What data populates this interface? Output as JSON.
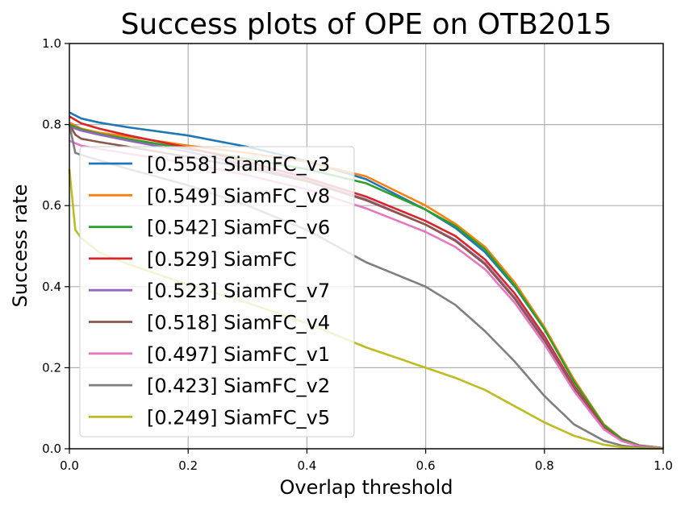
{
  "chart_data": {
    "type": "line",
    "title": "Success plots of OPE on OTB2015",
    "xlabel": "Overlap threshold",
    "ylabel": "Success rate",
    "xlim": [
      0,
      1
    ],
    "ylim": [
      0,
      1
    ],
    "x_ticks": [
      "0.0",
      "0.2",
      "0.4",
      "0.6",
      "0.8",
      "1.0"
    ],
    "y_ticks": [
      "0.0",
      "0.2",
      "0.4",
      "0.6",
      "0.8",
      "1.0"
    ],
    "grid": true,
    "legend_position": "center-left",
    "series": [
      {
        "name": "[0.558] SiamFC_v3",
        "color": "#1f77b4",
        "x": [
          0,
          0.02,
          0.05,
          0.1,
          0.2,
          0.3,
          0.4,
          0.5,
          0.6,
          0.65,
          0.7,
          0.75,
          0.8,
          0.85,
          0.9,
          0.93,
          0.96,
          1.0
        ],
        "y": [
          0.83,
          0.815,
          0.805,
          0.793,
          0.773,
          0.745,
          0.71,
          0.665,
          0.59,
          0.545,
          0.485,
          0.4,
          0.295,
          0.17,
          0.06,
          0.025,
          0.008,
          0.002
        ]
      },
      {
        "name": "[0.549] SiamFC_v8",
        "color": "#ff7f0e",
        "x": [
          0,
          0.02,
          0.05,
          0.1,
          0.2,
          0.3,
          0.4,
          0.5,
          0.6,
          0.65,
          0.7,
          0.75,
          0.8,
          0.85,
          0.9,
          0.93,
          0.96,
          1.0
        ],
        "y": [
          0.805,
          0.79,
          0.78,
          0.77,
          0.748,
          0.73,
          0.708,
          0.672,
          0.6,
          0.555,
          0.498,
          0.41,
          0.3,
          0.17,
          0.06,
          0.025,
          0.008,
          0.002
        ]
      },
      {
        "name": "[0.542] SiamFC_v6",
        "color": "#2ca02c",
        "x": [
          0,
          0.02,
          0.05,
          0.1,
          0.2,
          0.3,
          0.4,
          0.5,
          0.6,
          0.65,
          0.7,
          0.75,
          0.8,
          0.85,
          0.9,
          0.93,
          0.96,
          1.0
        ],
        "y": [
          0.8,
          0.788,
          0.777,
          0.764,
          0.74,
          0.715,
          0.69,
          0.655,
          0.59,
          0.55,
          0.492,
          0.403,
          0.295,
          0.165,
          0.058,
          0.024,
          0.008,
          0.002
        ]
      },
      {
        "name": "[0.529] SiamFC",
        "color": "#d62728",
        "x": [
          0,
          0.02,
          0.05,
          0.1,
          0.2,
          0.3,
          0.4,
          0.5,
          0.6,
          0.65,
          0.7,
          0.75,
          0.8,
          0.85,
          0.9,
          0.93,
          0.96,
          1.0
        ],
        "y": [
          0.82,
          0.803,
          0.79,
          0.773,
          0.743,
          0.708,
          0.668,
          0.622,
          0.562,
          0.525,
          0.467,
          0.383,
          0.278,
          0.155,
          0.052,
          0.02,
          0.007,
          0.002
        ]
      },
      {
        "name": "[0.523] SiamFC_v7",
        "color": "#9467bd",
        "x": [
          0,
          0.02,
          0.05,
          0.1,
          0.2,
          0.3,
          0.4,
          0.5,
          0.6,
          0.65,
          0.7,
          0.75,
          0.8,
          0.85,
          0.9,
          0.93,
          0.96,
          1.0
        ],
        "y": [
          0.795,
          0.785,
          0.775,
          0.76,
          0.733,
          0.7,
          0.662,
          0.615,
          0.553,
          0.515,
          0.458,
          0.373,
          0.27,
          0.15,
          0.05,
          0.02,
          0.007,
          0.002
        ]
      },
      {
        "name": "[0.518] SiamFC_v4",
        "color": "#8c564b",
        "x": [
          0,
          0.01,
          0.02,
          0.05,
          0.1,
          0.2,
          0.3,
          0.4,
          0.5,
          0.6,
          0.65,
          0.7,
          0.75,
          0.8,
          0.85,
          0.9,
          0.93,
          0.96,
          1.0
        ],
        "y": [
          0.8,
          0.775,
          0.765,
          0.757,
          0.745,
          0.72,
          0.693,
          0.66,
          0.613,
          0.553,
          0.513,
          0.455,
          0.37,
          0.267,
          0.148,
          0.05,
          0.02,
          0.007,
          0.002
        ]
      },
      {
        "name": "[0.497] SiamFC_v1",
        "color": "#e377c2",
        "x": [
          0,
          0.02,
          0.05,
          0.1,
          0.2,
          0.3,
          0.4,
          0.5,
          0.6,
          0.65,
          0.7,
          0.75,
          0.8,
          0.85,
          0.9,
          0.93,
          0.96,
          1.0
        ],
        "y": [
          0.76,
          0.748,
          0.74,
          0.728,
          0.705,
          0.675,
          0.64,
          0.593,
          0.535,
          0.498,
          0.443,
          0.36,
          0.258,
          0.142,
          0.048,
          0.019,
          0.006,
          0.002
        ]
      },
      {
        "name": "[0.423] SiamFC_v2",
        "color": "#7f7f7f",
        "x": [
          0,
          0.01,
          0.02,
          0.05,
          0.1,
          0.2,
          0.3,
          0.4,
          0.5,
          0.55,
          0.6,
          0.65,
          0.7,
          0.75,
          0.8,
          0.85,
          0.9,
          0.93,
          0.96,
          1.0
        ],
        "y": [
          0.8,
          0.73,
          0.725,
          0.712,
          0.69,
          0.65,
          0.6,
          0.54,
          0.46,
          0.43,
          0.4,
          0.355,
          0.29,
          0.215,
          0.13,
          0.06,
          0.02,
          0.008,
          0.003,
          0.001
        ]
      },
      {
        "name": "[0.249] SiamFC_v5",
        "color": "#bcbd22",
        "x": [
          0,
          0.01,
          0.02,
          0.05,
          0.1,
          0.2,
          0.3,
          0.4,
          0.5,
          0.6,
          0.65,
          0.7,
          0.75,
          0.8,
          0.85,
          0.9,
          0.93,
          0.96,
          1.0
        ],
        "y": [
          0.69,
          0.54,
          0.52,
          0.485,
          0.455,
          0.405,
          0.36,
          0.31,
          0.25,
          0.2,
          0.175,
          0.145,
          0.105,
          0.065,
          0.032,
          0.01,
          0.004,
          0.001,
          0.0
        ]
      }
    ]
  }
}
